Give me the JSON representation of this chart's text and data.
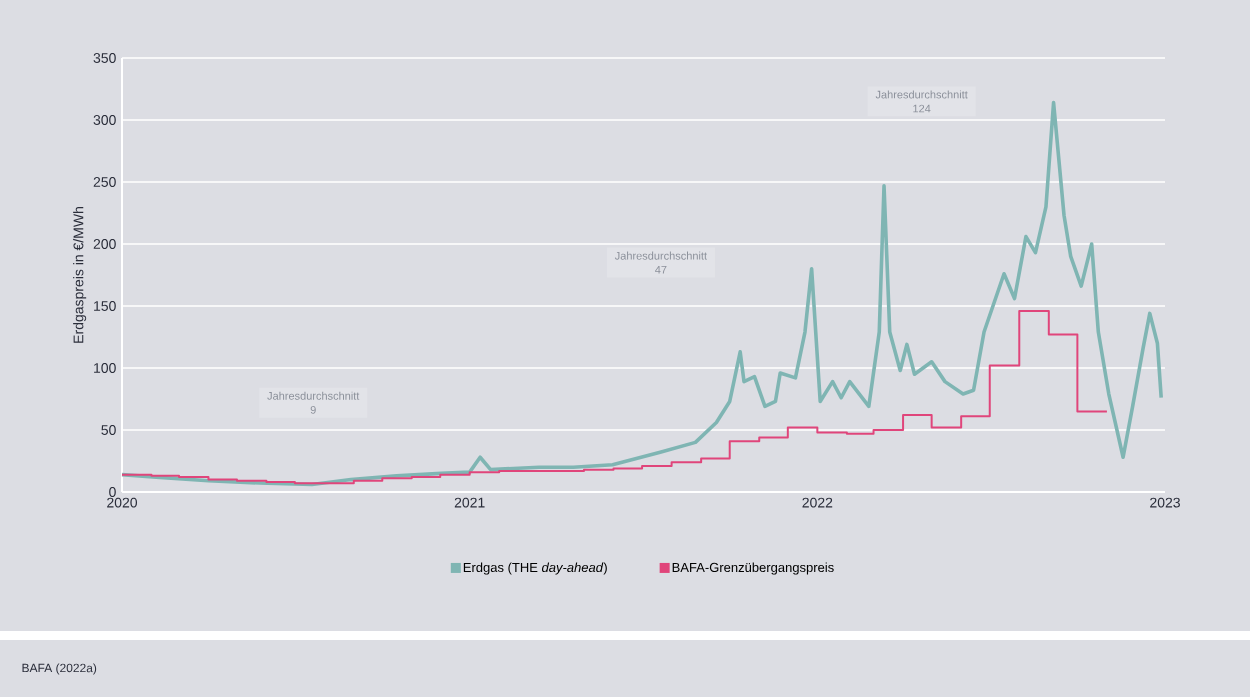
{
  "chart_data": {
    "type": "line",
    "ylabel": "Erdgaspreis in €/MWh",
    "annotations": [
      "Jahresdurchschnitt 9",
      "Jahresdurchschnitt 47",
      "Jahresdurchschnitt 124",
      "BAFA (2022a)"
    ],
    "xlim": [
      "2020",
      "2023"
    ],
    "xticks": [
      "2020",
      "2021",
      "2022",
      "2023"
    ],
    "ylim": [
      0,
      350
    ],
    "yticks": [
      0,
      50,
      100,
      150,
      200,
      250,
      300,
      350
    ],
    "grid": "y",
    "legend": "bottom",
    "series": [
      {
        "name": "Erdgas (THE *day-ahead*)",
        "color": "#7fb5b3",
        "x": [
          "2020-01-01",
          "2020-02-06",
          "2020-04-01",
          "2020-06-02",
          "2020-07-19",
          "2020-08-29",
          "2020-10-16",
          "2020-12-02",
          "2021-01-01",
          "2021-01-12",
          "2021-01-23",
          "2021-03-15",
          "2021-04-20",
          "2021-05-31",
          "2021-07-20",
          "2021-08-26",
          "2021-09-17",
          "2021-10-01",
          "2021-10-12",
          "2021-10-16",
          "2021-10-27",
          "2021-11-07",
          "2021-11-18",
          "2021-11-23",
          "2021-12-09",
          "2021-12-19",
          "2021-12-26",
          "2022-01-04",
          "2022-01-17",
          "2022-01-26",
          "2022-02-04",
          "2022-02-24",
          "2022-03-07",
          "2022-03-12",
          "2022-03-18",
          "2022-03-29",
          "2022-04-05",
          "2022-04-13",
          "2022-05-01",
          "2022-05-15",
          "2022-06-03",
          "2022-06-14",
          "2022-06-25",
          "2022-07-16",
          "2022-07-27",
          "2022-08-08",
          "2022-08-18",
          "2022-08-29",
          "2022-09-06",
          "2022-09-17",
          "2022-09-24",
          "2022-10-05",
          "2022-10-16",
          "2022-10-23",
          "2022-11-03",
          "2022-11-18",
          "2022-11-28",
          "2022-12-09",
          "2022-12-16",
          "2022-12-24",
          "2022-12-28"
        ],
        "values": [
          14,
          12,
          9,
          7,
          6,
          10,
          13,
          15,
          16,
          28,
          18,
          20,
          20,
          22,
          32,
          40,
          56,
          73,
          113,
          89,
          93,
          69,
          73,
          96,
          92,
          129,
          180,
          73,
          89,
          76,
          89,
          69,
          129,
          247,
          129,
          98,
          119,
          95,
          105,
          89,
          79,
          82,
          129,
          176,
          156,
          206,
          193,
          230,
          314,
          223,
          190,
          166,
          200,
          129,
          79,
          28,
          69,
          116,
          144,
          120,
          76
        ]
      },
      {
        "name": "BAFA-Grenzübergangspreis",
        "color": "#e0457b",
        "type": "step",
        "x": [
          "2020-01",
          "2020-02",
          "2020-03",
          "2020-04",
          "2020-05",
          "2020-06",
          "2020-07",
          "2020-08",
          "2020-09",
          "2020-10",
          "2020-11",
          "2020-12",
          "2021-01",
          "2021-02",
          "2021-03",
          "2021-04",
          "2021-05",
          "2021-06",
          "2021-07",
          "2021-08",
          "2021-09",
          "2021-10",
          "2021-11",
          "2021-12",
          "2022-01",
          "2022-02",
          "2022-03",
          "2022-04",
          "2022-05",
          "2022-06",
          "2022-07",
          "2022-08",
          "2022-09",
          "2022-10",
          "2022-11"
        ],
        "values": [
          14,
          13,
          12,
          10,
          9,
          8,
          7,
          7,
          9,
          11,
          12,
          14,
          16,
          17,
          17,
          17,
          18,
          19,
          21,
          24,
          27,
          41,
          44,
          52,
          48,
          47,
          50,
          62,
          52,
          61,
          102,
          146,
          127,
          65,
          65
        ]
      }
    ]
  }
}
